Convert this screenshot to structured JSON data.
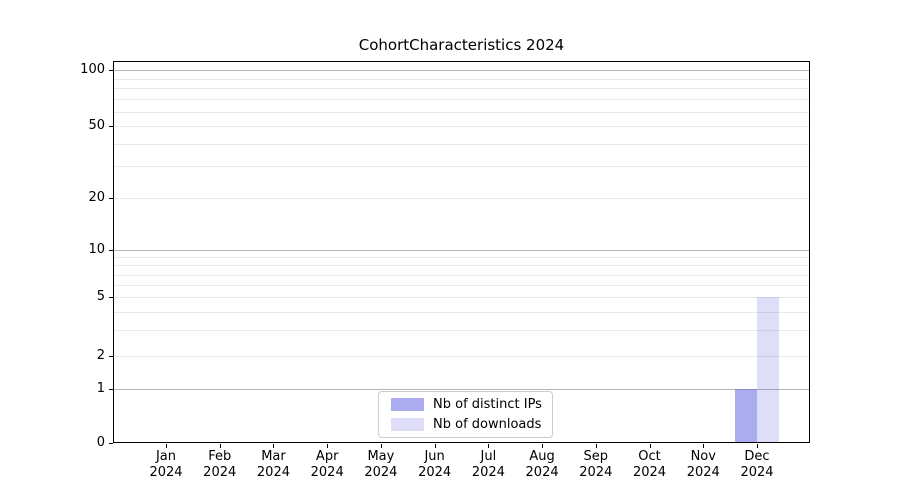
{
  "title": "CohortCharacteristics 2024",
  "chart_data": {
    "type": "bar",
    "title": "CohortCharacteristics 2024",
    "categories": [
      "Jan 2024",
      "Feb 2024",
      "Mar 2024",
      "Apr 2024",
      "May 2024",
      "Jun 2024",
      "Jul 2024",
      "Aug 2024",
      "Sep 2024",
      "Oct 2024",
      "Nov 2024",
      "Dec 2024"
    ],
    "series": [
      {
        "name": "Nb of distinct IPs",
        "color": "#5a5ae1",
        "alpha": 0.5,
        "values": [
          0,
          0,
          0,
          0,
          0,
          0,
          0,
          0,
          0,
          0,
          0,
          1
        ]
      },
      {
        "name": "Nb of downloads",
        "color": "#5a5ae1",
        "alpha": 0.2,
        "values": [
          0,
          0,
          0,
          0,
          0,
          0,
          0,
          0,
          0,
          0,
          0,
          5
        ]
      }
    ],
    "xlabel": "",
    "ylabel": "",
    "y_ticks": [
      0,
      1,
      2,
      5,
      10,
      20,
      50,
      100
    ],
    "y_major_gridlines": [
      1,
      10,
      100
    ],
    "y_minor_gridlines": [
      2,
      3,
      4,
      5,
      6,
      7,
      8,
      9,
      20,
      30,
      40,
      50,
      60,
      70,
      80,
      90
    ],
    "ylim": [
      0,
      110
    ],
    "y_scale": "log-like",
    "grid": "horizontal",
    "legend_position": "lower center",
    "colors": {
      "major_grid": "#b4b4b4",
      "minor_grid": "#e9e9e9",
      "axis": "#000000",
      "bar_distinct_ips": "#adadf0",
      "bar_downloads": "#dedef8"
    }
  }
}
